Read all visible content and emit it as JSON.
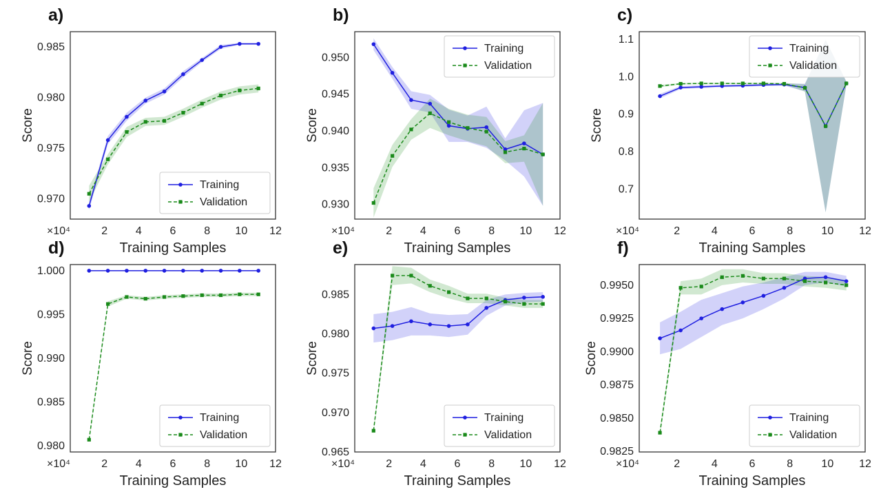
{
  "chart_data": [
    {
      "type": "line",
      "panel": "a)",
      "xlabel": "Training Samples",
      "ylabel": "Score",
      "x_multiplier": "×10⁴",
      "xlim": [
        0,
        12
      ],
      "ylim": [
        0.968,
        0.9865
      ],
      "xticks": [
        2,
        4,
        6,
        8,
        10,
        12
      ],
      "yticks": [
        0.97,
        0.975,
        0.98,
        0.985
      ],
      "ytick_labels": [
        "0.970",
        "0.975",
        "0.980",
        "0.985"
      ],
      "legend_position": "lower-right",
      "series": [
        {
          "name": "Training",
          "style": "solid",
          "marker": "circle",
          "color": "#1f1fe0",
          "x": [
            1.1,
            2.2,
            3.3,
            4.4,
            5.5,
            6.6,
            7.7,
            8.8,
            9.9,
            11.0
          ],
          "y": [
            0.9693,
            0.9758,
            0.9781,
            0.9797,
            0.9806,
            0.9823,
            0.9837,
            0.985,
            0.9853,
            0.9853
          ],
          "band": [
            0.0004,
            0.0004,
            0.0004,
            0.0003,
            0.0003,
            0.0003,
            0.0002,
            0.0002,
            0.0001,
            0.0001
          ]
        },
        {
          "name": "Validation",
          "style": "dashed",
          "marker": "square",
          "color": "#1a8a1a",
          "x": [
            1.1,
            2.2,
            3.3,
            4.4,
            5.5,
            6.6,
            7.7,
            8.8,
            9.9,
            11.0
          ],
          "y": [
            0.9705,
            0.9739,
            0.9766,
            0.9776,
            0.9777,
            0.9785,
            0.9794,
            0.9802,
            0.9807,
            0.9809
          ],
          "band": [
            0.0008,
            0.0005,
            0.0005,
            0.0004,
            0.0004,
            0.0004,
            0.0004,
            0.0004,
            0.0004,
            0.0004
          ]
        }
      ]
    },
    {
      "type": "line",
      "panel": "b)",
      "xlabel": "Training Samples",
      "ylabel": "Score",
      "x_multiplier": "×10⁴",
      "xlim": [
        0,
        12
      ],
      "ylim": [
        0.928,
        0.9535
      ],
      "xticks": [
        2,
        4,
        6,
        8,
        10,
        12
      ],
      "yticks": [
        0.93,
        0.935,
        0.94,
        0.945,
        0.95
      ],
      "ytick_labels": [
        "0.930",
        "0.935",
        "0.940",
        "0.945",
        "0.950"
      ],
      "legend_position": "upper-right",
      "series": [
        {
          "name": "Training",
          "style": "solid",
          "marker": "circle",
          "color": "#1f1fe0",
          "x": [
            1.1,
            2.2,
            3.3,
            4.4,
            5.5,
            6.6,
            7.7,
            8.8,
            9.9,
            11.0
          ],
          "y": [
            0.9518,
            0.9479,
            0.9442,
            0.9437,
            0.9407,
            0.9403,
            0.9405,
            0.9375,
            0.9383,
            0.9368
          ],
          "band": [
            0.0008,
            0.0008,
            0.0012,
            0.0012,
            0.0022,
            0.0018,
            0.0028,
            0.0015,
            0.0045,
            0.007
          ]
        },
        {
          "name": "Validation",
          "style": "dashed",
          "marker": "square",
          "color": "#1a8a1a",
          "x": [
            1.1,
            2.2,
            3.3,
            4.4,
            5.5,
            6.6,
            7.7,
            8.8,
            9.9,
            11.0
          ],
          "y": [
            0.9302,
            0.9366,
            0.9402,
            0.9424,
            0.9412,
            0.9404,
            0.9399,
            0.9371,
            0.9376,
            0.9368
          ],
          "band": [
            0.002,
            0.0015,
            0.0014,
            0.002,
            0.0018,
            0.0018,
            0.002,
            0.0015,
            0.0018,
            0.007
          ]
        }
      ]
    },
    {
      "type": "line",
      "panel": "c)",
      "xlabel": "Training Samples",
      "ylabel": "Score",
      "x_multiplier": "×10⁴",
      "xlim": [
        0,
        12
      ],
      "ylim": [
        0.62,
        1.12
      ],
      "xticks": [
        2,
        4,
        6,
        8,
        10,
        12
      ],
      "yticks": [
        0.7,
        0.8,
        0.9,
        1.0,
        1.1
      ],
      "ytick_labels": [
        "0.7",
        "0.8",
        "0.9",
        "1.0",
        "1.1"
      ],
      "legend_position": "upper-right",
      "series": [
        {
          "name": "Training",
          "style": "solid",
          "marker": "circle",
          "color": "#1f1fe0",
          "x": [
            1.1,
            2.2,
            3.3,
            4.4,
            5.5,
            6.6,
            7.7,
            8.8,
            9.9,
            11.0
          ],
          "y": [
            0.948,
            0.971,
            0.973,
            0.975,
            0.976,
            0.978,
            0.979,
            0.971,
            0.868,
            0.982
          ],
          "band": [
            0.006,
            0.004,
            0.004,
            0.003,
            0.003,
            0.003,
            0.003,
            0.01,
            0.23,
            0.005
          ]
        },
        {
          "name": "Validation",
          "style": "dashed",
          "marker": "square",
          "color": "#1a8a1a",
          "x": [
            1.1,
            2.2,
            3.3,
            4.4,
            5.5,
            6.6,
            7.7,
            8.8,
            9.9,
            11.0
          ],
          "y": [
            0.975,
            0.981,
            0.982,
            0.982,
            0.982,
            0.982,
            0.981,
            0.97,
            0.868,
            0.982
          ],
          "band": [
            0.003,
            0.002,
            0.002,
            0.002,
            0.002,
            0.002,
            0.002,
            0.01,
            0.23,
            0.005
          ]
        }
      ]
    },
    {
      "type": "line",
      "panel": "d)",
      "xlabel": "Training Samples",
      "ylabel": "Score",
      "x_multiplier": "×10⁴",
      "xlim": [
        0,
        12
      ],
      "ylim": [
        0.9793,
        1.0007
      ],
      "xticks": [
        2,
        4,
        6,
        8,
        10,
        12
      ],
      "yticks": [
        0.98,
        0.985,
        0.99,
        0.995,
        1.0
      ],
      "ytick_labels": [
        "0.980",
        "0.985",
        "0.990",
        "0.995",
        "1.000"
      ],
      "legend_position": "lower-right",
      "series": [
        {
          "name": "Training",
          "style": "solid",
          "marker": "circle",
          "color": "#1f1fe0",
          "x": [
            1.1,
            2.2,
            3.3,
            4.4,
            5.5,
            6.6,
            7.7,
            8.8,
            9.9,
            11.0
          ],
          "y": [
            1.0,
            1.0,
            1.0,
            1.0,
            1.0,
            1.0,
            1.0,
            1.0,
            1.0,
            1.0
          ],
          "band": [
            0,
            0,
            0,
            0,
            0,
            0,
            0,
            0,
            0,
            0
          ]
        },
        {
          "name": "Validation",
          "style": "dashed",
          "marker": "square",
          "color": "#1a8a1a",
          "x": [
            1.1,
            2.2,
            3.3,
            4.4,
            5.5,
            6.6,
            7.7,
            8.8,
            9.9,
            11.0
          ],
          "y": [
            0.9807,
            0.9962,
            0.997,
            0.9968,
            0.997,
            0.9971,
            0.9972,
            0.9972,
            0.9973,
            0.9973
          ],
          "band": [
            0.0002,
            0.0003,
            0.0002,
            0.0002,
            0.0002,
            0.0002,
            0.0002,
            0.0002,
            0.0002,
            0.0002
          ]
        }
      ]
    },
    {
      "type": "line",
      "panel": "e)",
      "xlabel": "Training Samples",
      "ylabel": "Score",
      "x_multiplier": "×10⁴",
      "xlim": [
        0,
        12
      ],
      "ylim": [
        0.965,
        0.9888
      ],
      "xticks": [
        2,
        4,
        6,
        8,
        10,
        12
      ],
      "yticks": [
        0.965,
        0.97,
        0.975,
        0.98,
        0.985
      ],
      "ytick_labels": [
        "0.965",
        "0.970",
        "0.975",
        "0.980",
        "0.985"
      ],
      "legend_position": "lower-right",
      "series": [
        {
          "name": "Training",
          "style": "solid",
          "marker": "circle",
          "color": "#1f1fe0",
          "x": [
            1.1,
            2.2,
            3.3,
            4.4,
            5.5,
            6.6,
            7.7,
            8.8,
            9.9,
            11.0
          ],
          "y": [
            0.9807,
            0.981,
            0.9816,
            0.9812,
            0.981,
            0.9812,
            0.9833,
            0.9843,
            0.9846,
            0.9847
          ],
          "band": [
            0.0018,
            0.0018,
            0.0018,
            0.0014,
            0.0014,
            0.0013,
            0.001,
            0.0007,
            0.0006,
            0.0006
          ]
        },
        {
          "name": "Validation",
          "style": "dashed",
          "marker": "square",
          "color": "#1a8a1a",
          "x": [
            1.1,
            2.2,
            3.3,
            4.4,
            5.5,
            6.6,
            7.7,
            8.8,
            9.9,
            11.0
          ],
          "y": [
            0.9677,
            0.9874,
            0.9874,
            0.9861,
            0.9853,
            0.9845,
            0.9845,
            0.9841,
            0.9838,
            0.9838
          ],
          "band": [
            0.0004,
            0.0012,
            0.001,
            0.0008,
            0.0008,
            0.0006,
            0.0006,
            0.0005,
            0.0005,
            0.0005
          ]
        }
      ]
    },
    {
      "type": "line",
      "panel": "f)",
      "xlabel": "Training Samples",
      "ylabel": "Score",
      "x_multiplier": "×10⁴",
      "xlim": [
        0,
        12
      ],
      "ylim": [
        0.98245,
        0.99655
      ],
      "xticks": [
        2,
        4,
        6,
        8,
        10,
        12
      ],
      "yticks": [
        0.9825,
        0.985,
        0.9875,
        0.99,
        0.9925,
        0.995
      ],
      "ytick_labels": [
        "0.9825",
        "0.9850",
        "0.9875",
        "0.9900",
        "0.9925",
        "0.9950"
      ],
      "legend_position": "lower-right",
      "series": [
        {
          "name": "Training",
          "style": "solid",
          "marker": "circle",
          "color": "#1f1fe0",
          "x": [
            1.1,
            2.2,
            3.3,
            4.4,
            5.5,
            6.6,
            7.7,
            8.8,
            9.9,
            11.0
          ],
          "y": [
            0.991,
            0.9916,
            0.9925,
            0.9932,
            0.9937,
            0.9942,
            0.9948,
            0.9955,
            0.9956,
            0.9953
          ],
          "band": [
            0.0012,
            0.0014,
            0.0014,
            0.0012,
            0.0012,
            0.001,
            0.0008,
            0.0005,
            0.0004,
            0.0004
          ]
        },
        {
          "name": "Validation",
          "style": "dashed",
          "marker": "square",
          "color": "#1a8a1a",
          "x": [
            1.1,
            2.2,
            3.3,
            4.4,
            5.5,
            6.6,
            7.7,
            8.8,
            9.9,
            11.0
          ],
          "y": [
            0.9839,
            0.9948,
            0.9949,
            0.9956,
            0.9957,
            0.9955,
            0.9955,
            0.9953,
            0.9952,
            0.995
          ],
          "band": [
            0.0003,
            0.0005,
            0.0006,
            0.0006,
            0.0005,
            0.0004,
            0.0004,
            0.0004,
            0.0004,
            0.0004
          ]
        }
      ]
    }
  ]
}
